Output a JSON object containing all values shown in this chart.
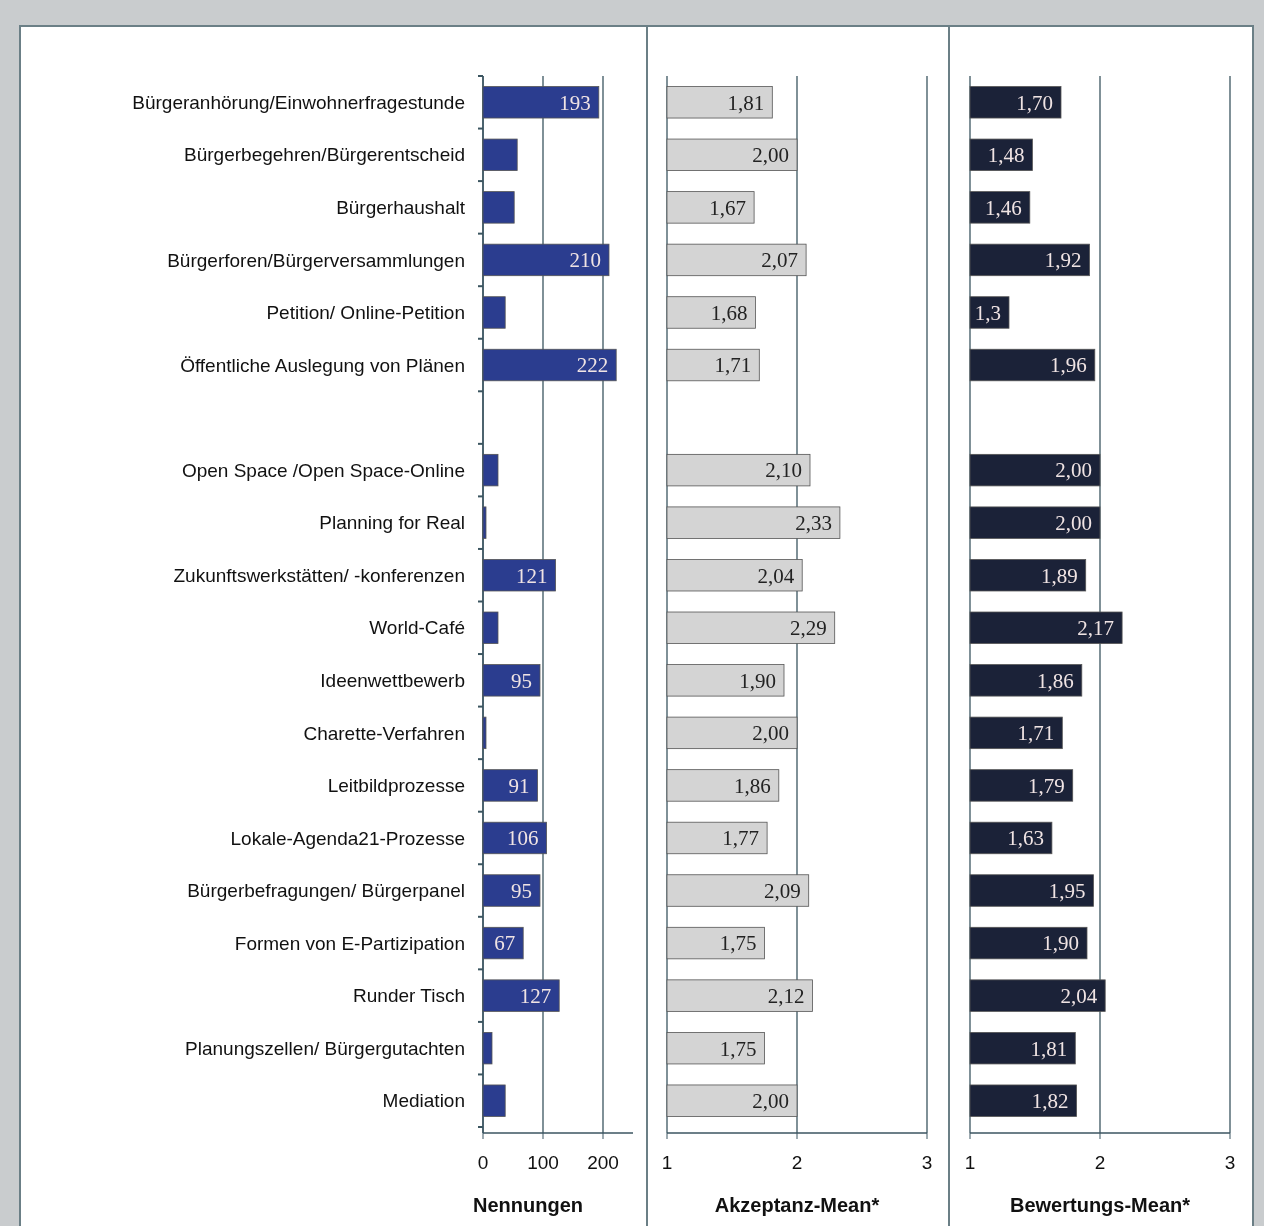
{
  "chart_data": [
    {
      "type": "bar",
      "orientation": "horizontal",
      "xlabel": "Nennungen",
      "categories": [
        "Bürgeranhörung/Einwohnerfragestunde",
        "Bürgerbegehren/Bürgerentscheid",
        "Bürgerhaushalt",
        "Bürgerforen/Bürgerversammlungen",
        "Petition/ Online-Petition",
        "Öffentliche Auslegung von Plänen",
        null,
        "Open Space /Open Space-Online",
        "Planning for Real",
        "Zukunftswerkstätten/ -konferenzen",
        "World-Café",
        "Ideenwettbewerb",
        "Charette-Verfahren",
        "Leitbildprozesse",
        "Lokale-Agenda21-Prozesse",
        "Bürgerbefragungen/ Bürgerpanel",
        "Formen von E-Partizipation",
        "Runder Tisch",
        "Planungszellen/ Bürgergutachten",
        "Mediation"
      ],
      "values": [
        193,
        57,
        52,
        210,
        37,
        222,
        null,
        25,
        5,
        121,
        25,
        95,
        5,
        91,
        106,
        95,
        67,
        127,
        15,
        37
      ],
      "value_labels": [
        "193",
        null,
        null,
        "210",
        null,
        "222",
        null,
        null,
        null,
        "121",
        null,
        "95",
        null,
        "91",
        "106",
        "95",
        "67",
        "127",
        null,
        null
      ],
      "color": "#2b3d8f",
      "xlim": [
        0,
        250
      ],
      "xticks": [
        0,
        100,
        200
      ],
      "grid": "x"
    },
    {
      "type": "bar",
      "orientation": "horizontal",
      "xlabel": "Akzeptanz-Mean*",
      "tick_labels": "x",
      "categories": [
        null,
        null,
        null,
        null,
        null,
        null,
        null,
        null,
        null,
        null,
        null,
        null,
        null,
        null,
        null,
        null,
        null,
        null,
        null,
        null
      ],
      "values": [
        1.81,
        2.0,
        1.67,
        2.07,
        1.68,
        1.71,
        null,
        2.1,
        2.33,
        2.04,
        2.29,
        1.9,
        2.0,
        1.86,
        1.77,
        2.09,
        1.75,
        2.12,
        1.75,
        2.0
      ],
      "value_labels": [
        "1,81",
        "2,00",
        "1,67",
        "2,07",
        "1,68",
        "1,71",
        null,
        "2,10",
        "2,33",
        "2,04",
        "2,29",
        "1,90",
        "2,00",
        "1,86",
        "1,77",
        "2,09",
        "1,75",
        "2,12",
        "1,75",
        "2,00"
      ],
      "color": "#d4d4d4",
      "xlim": [
        1,
        3
      ],
      "xticks": [
        1,
        2,
        3
      ],
      "grid": "x"
    },
    {
      "type": "bar",
      "orientation": "horizontal",
      "xlabel": "Bewertungs-Mean*",
      "tick_labels": "x",
      "categories": [
        null,
        null,
        null,
        null,
        null,
        null,
        null,
        null,
        null,
        null,
        null,
        null,
        null,
        null,
        null,
        null,
        null,
        null,
        null,
        null
      ],
      "values": [
        1.7,
        1.48,
        1.46,
        1.92,
        1.3,
        1.96,
        null,
        2.0,
        2.0,
        1.89,
        2.17,
        1.86,
        1.71,
        1.79,
        1.63,
        1.95,
        1.9,
        2.04,
        1.81,
        1.82
      ],
      "value_labels": [
        "1,70",
        "1,48",
        "1,46",
        "1,92",
        "1,3",
        "1,96",
        null,
        "2,00",
        "2,00",
        "1,89",
        "2,17",
        "1,86",
        "1,71",
        "1,79",
        "1,63",
        "1,95",
        "1,90",
        "2,04",
        "1,81",
        "1,82"
      ],
      "color": "#1b2238",
      "xlim": [
        1,
        3
      ],
      "xticks": [
        1,
        2,
        3
      ],
      "grid": "x"
    }
  ]
}
